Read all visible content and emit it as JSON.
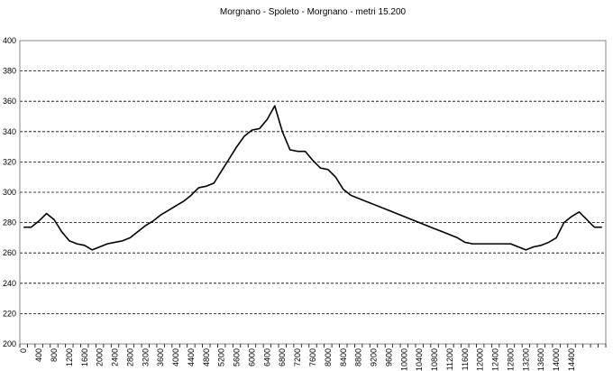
{
  "chart_data": {
    "type": "line",
    "title": "Morgnano - Spoleto - Morgnano - metri 15.200",
    "categories": [
      "0",
      null,
      "400",
      null,
      "800",
      null,
      "1200",
      null,
      "1600",
      null,
      "2000",
      null,
      "2400",
      null,
      "2800",
      null,
      "3200",
      null,
      "3600",
      null,
      "4000",
      null,
      "4400",
      null,
      "4800",
      null,
      "5200",
      null,
      "5600",
      null,
      "6000",
      null,
      "6400",
      null,
      "6800",
      null,
      "7200",
      null,
      "7600",
      null,
      "8000",
      null,
      "8400",
      null,
      "8800",
      null,
      "9200",
      null,
      "9600",
      null,
      "10000",
      null,
      "10400",
      null,
      "10800",
      null,
      "11200",
      null,
      "11600",
      null,
      "12000",
      null,
      "12400",
      null,
      "12800",
      null,
      "13200",
      null,
      "13600",
      null,
      "14000",
      null,
      "14400",
      null,
      null,
      null,
      null
    ],
    "values": [
      277,
      277,
      281,
      286,
      282,
      274,
      268,
      266,
      265,
      262,
      264,
      266,
      267,
      268,
      270,
      274,
      278,
      281,
      285,
      288,
      291,
      294,
      298,
      303,
      304,
      306,
      314,
      322,
      330,
      337,
      341,
      342,
      348,
      357,
      340,
      328,
      327,
      327,
      321,
      316,
      315,
      310,
      302,
      298,
      296,
      294,
      292,
      290,
      288,
      286,
      284,
      282,
      280,
      278,
      276,
      274,
      272,
      270,
      267,
      266,
      266,
      266,
      266,
      266,
      266,
      264,
      262,
      264,
      265,
      267,
      270,
      280,
      284,
      287,
      282,
      277,
      277
    ],
    "color": "#000000",
    "ylim": [
      200,
      400
    ],
    "yticks": [
      200,
      220,
      240,
      260,
      280,
      300,
      320,
      340,
      360,
      380,
      400
    ],
    "grid": true
  }
}
